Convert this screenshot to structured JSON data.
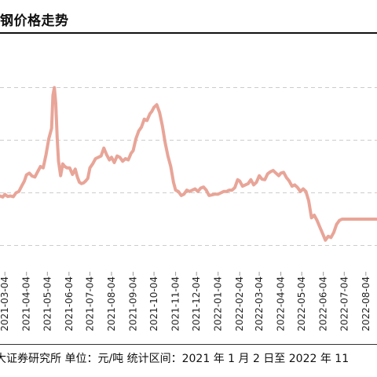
{
  "title": "钢价格走势",
  "source_note": "大证券研究所  单位：元/吨    统计区间：2021 年 1 月 2 日至 2022 年 11",
  "colors": {
    "line": "#E8A598",
    "grid": "#cccccc",
    "text": "#111111"
  },
  "chart_data": {
    "type": "line",
    "title": "钢价格走势",
    "xlabel": "",
    "ylabel": "",
    "x_ticks": [
      "2021-03-04",
      "2021-04-04",
      "2021-05-04",
      "2021-06-04",
      "2021-07-04",
      "2021-08-04",
      "2021-09-04",
      "2021-10-04",
      "2021-11-04",
      "2021-12-04",
      "2022-01-04",
      "2022-02-04",
      "2022-03-04",
      "2022-04-04",
      "2022-05-04",
      "2022-06-04",
      "2022-07-04",
      "2022-08-04"
    ],
    "xlim": [
      "2021-02-25",
      "2022-08-20"
    ],
    "ylim": [
      0,
      8
    ],
    "grid": true,
    "legend": "none",
    "series": [
      {
        "name": "",
        "x": [
          "2021-02-25",
          "2021-03-01",
          "2021-03-04",
          "2021-03-08",
          "2021-03-12",
          "2021-03-16",
          "2021-03-20",
          "2021-03-24",
          "2021-03-28",
          "2021-04-01",
          "2021-04-04",
          "2021-04-08",
          "2021-04-12",
          "2021-04-16",
          "2021-04-20",
          "2021-04-24",
          "2021-04-28",
          "2021-05-02",
          "2021-05-06",
          "2021-05-10",
          "2021-05-12",
          "2021-05-14",
          "2021-05-16",
          "2021-05-18",
          "2021-05-20",
          "2021-05-23",
          "2021-05-26",
          "2021-05-29",
          "2021-06-01",
          "2021-06-05",
          "2021-06-09",
          "2021-06-13",
          "2021-06-16",
          "2021-06-19",
          "2021-06-22",
          "2021-06-25",
          "2021-06-28",
          "2021-07-01",
          "2021-07-04",
          "2021-07-08",
          "2021-07-12",
          "2021-07-16",
          "2021-07-20",
          "2021-07-24",
          "2021-07-28",
          "2021-08-01",
          "2021-08-04",
          "2021-08-08",
          "2021-08-12",
          "2021-08-16",
          "2021-08-20",
          "2021-08-24",
          "2021-08-28",
          "2021-09-01",
          "2021-09-04",
          "2021-09-08",
          "2021-09-12",
          "2021-09-16",
          "2021-09-20",
          "2021-09-24",
          "2021-09-28",
          "2021-10-01",
          "2021-10-04",
          "2021-10-08",
          "2021-10-12",
          "2021-10-16",
          "2021-10-20",
          "2021-10-24",
          "2021-10-28",
          "2021-11-01",
          "2021-11-04",
          "2021-11-08",
          "2021-11-12",
          "2021-11-16",
          "2021-11-20",
          "2021-11-24",
          "2021-11-28",
          "2021-12-02",
          "2021-12-06",
          "2021-12-10",
          "2021-12-14",
          "2021-12-18",
          "2021-12-22",
          "2021-12-26",
          "2021-12-30",
          "2022-01-04",
          "2022-01-08",
          "2022-01-12",
          "2022-01-16",
          "2022-01-20",
          "2022-01-24",
          "2022-01-28",
          "2022-02-01",
          "2022-02-04",
          "2022-02-08",
          "2022-02-12",
          "2022-02-16",
          "2022-02-20",
          "2022-02-24",
          "2022-02-28",
          "2022-03-04",
          "2022-03-08",
          "2022-03-12",
          "2022-03-16",
          "2022-03-20",
          "2022-03-24",
          "2022-03-28",
          "2022-04-01",
          "2022-04-04",
          "2022-04-08",
          "2022-04-12",
          "2022-04-16",
          "2022-04-20",
          "2022-04-24",
          "2022-04-28",
          "2022-05-02",
          "2022-05-06",
          "2022-05-10",
          "2022-05-14",
          "2022-05-18",
          "2022-05-22",
          "2022-05-26",
          "2022-05-30",
          "2022-06-03",
          "2022-06-07",
          "2022-06-11",
          "2022-06-15",
          "2022-06-19",
          "2022-06-23",
          "2022-06-27",
          "2022-07-01",
          "2022-07-04",
          "2022-07-08",
          "2022-07-12",
          "2022-07-16",
          "2022-07-20",
          "2022-07-24",
          "2022-07-28",
          "2022-08-01",
          "2022-08-04",
          "2022-08-08",
          "2022-08-12",
          "2022-08-20"
        ],
        "values": [
          2.88,
          2.84,
          2.94,
          2.86,
          2.88,
          2.85,
          3.0,
          3.05,
          3.25,
          3.45,
          3.68,
          3.75,
          3.64,
          3.6,
          3.8,
          4.0,
          3.95,
          4.45,
          5.05,
          5.45,
          6.7,
          7.0,
          6.4,
          5.1,
          4.2,
          3.65,
          4.1,
          4.0,
          3.95,
          3.95,
          3.7,
          3.9,
          3.6,
          3.4,
          3.35,
          3.38,
          3.45,
          3.55,
          3.95,
          4.1,
          4.3,
          4.35,
          4.4,
          4.7,
          4.45,
          4.25,
          4.35,
          4.15,
          4.4,
          4.35,
          4.2,
          4.3,
          4.25,
          4.5,
          4.6,
          5.05,
          5.35,
          5.5,
          5.8,
          5.75,
          6.0,
          6.1,
          6.25,
          6.35,
          6.05,
          5.55,
          4.9,
          4.4,
          4.0,
          3.4,
          3.1,
          3.05,
          2.9,
          2.95,
          3.1,
          3.05,
          3.1,
          3.15,
          3.05,
          3.18,
          3.22,
          3.1,
          2.9,
          2.92,
          2.95,
          2.95,
          3.0,
          3.05,
          3.05,
          3.1,
          3.1,
          3.2,
          3.5,
          3.45,
          3.25,
          3.3,
          3.35,
          3.5,
          3.3,
          3.4,
          3.65,
          3.52,
          3.5,
          3.72,
          3.8,
          3.85,
          3.75,
          3.65,
          3.75,
          3.78,
          3.58,
          3.45,
          3.25,
          3.3,
          3.2,
          3.05,
          3.15,
          3.05,
          2.7,
          2.05,
          2.15,
          1.95,
          1.7,
          1.45,
          1.2,
          1.35,
          1.3,
          1.5,
          1.8,
          1.95,
          2.0,
          2.0,
          2.0,
          2.0,
          2.0,
          2.0,
          2.0,
          2.0,
          2.0,
          2.0,
          2.0,
          2.0,
          2.0
        ]
      }
    ]
  }
}
